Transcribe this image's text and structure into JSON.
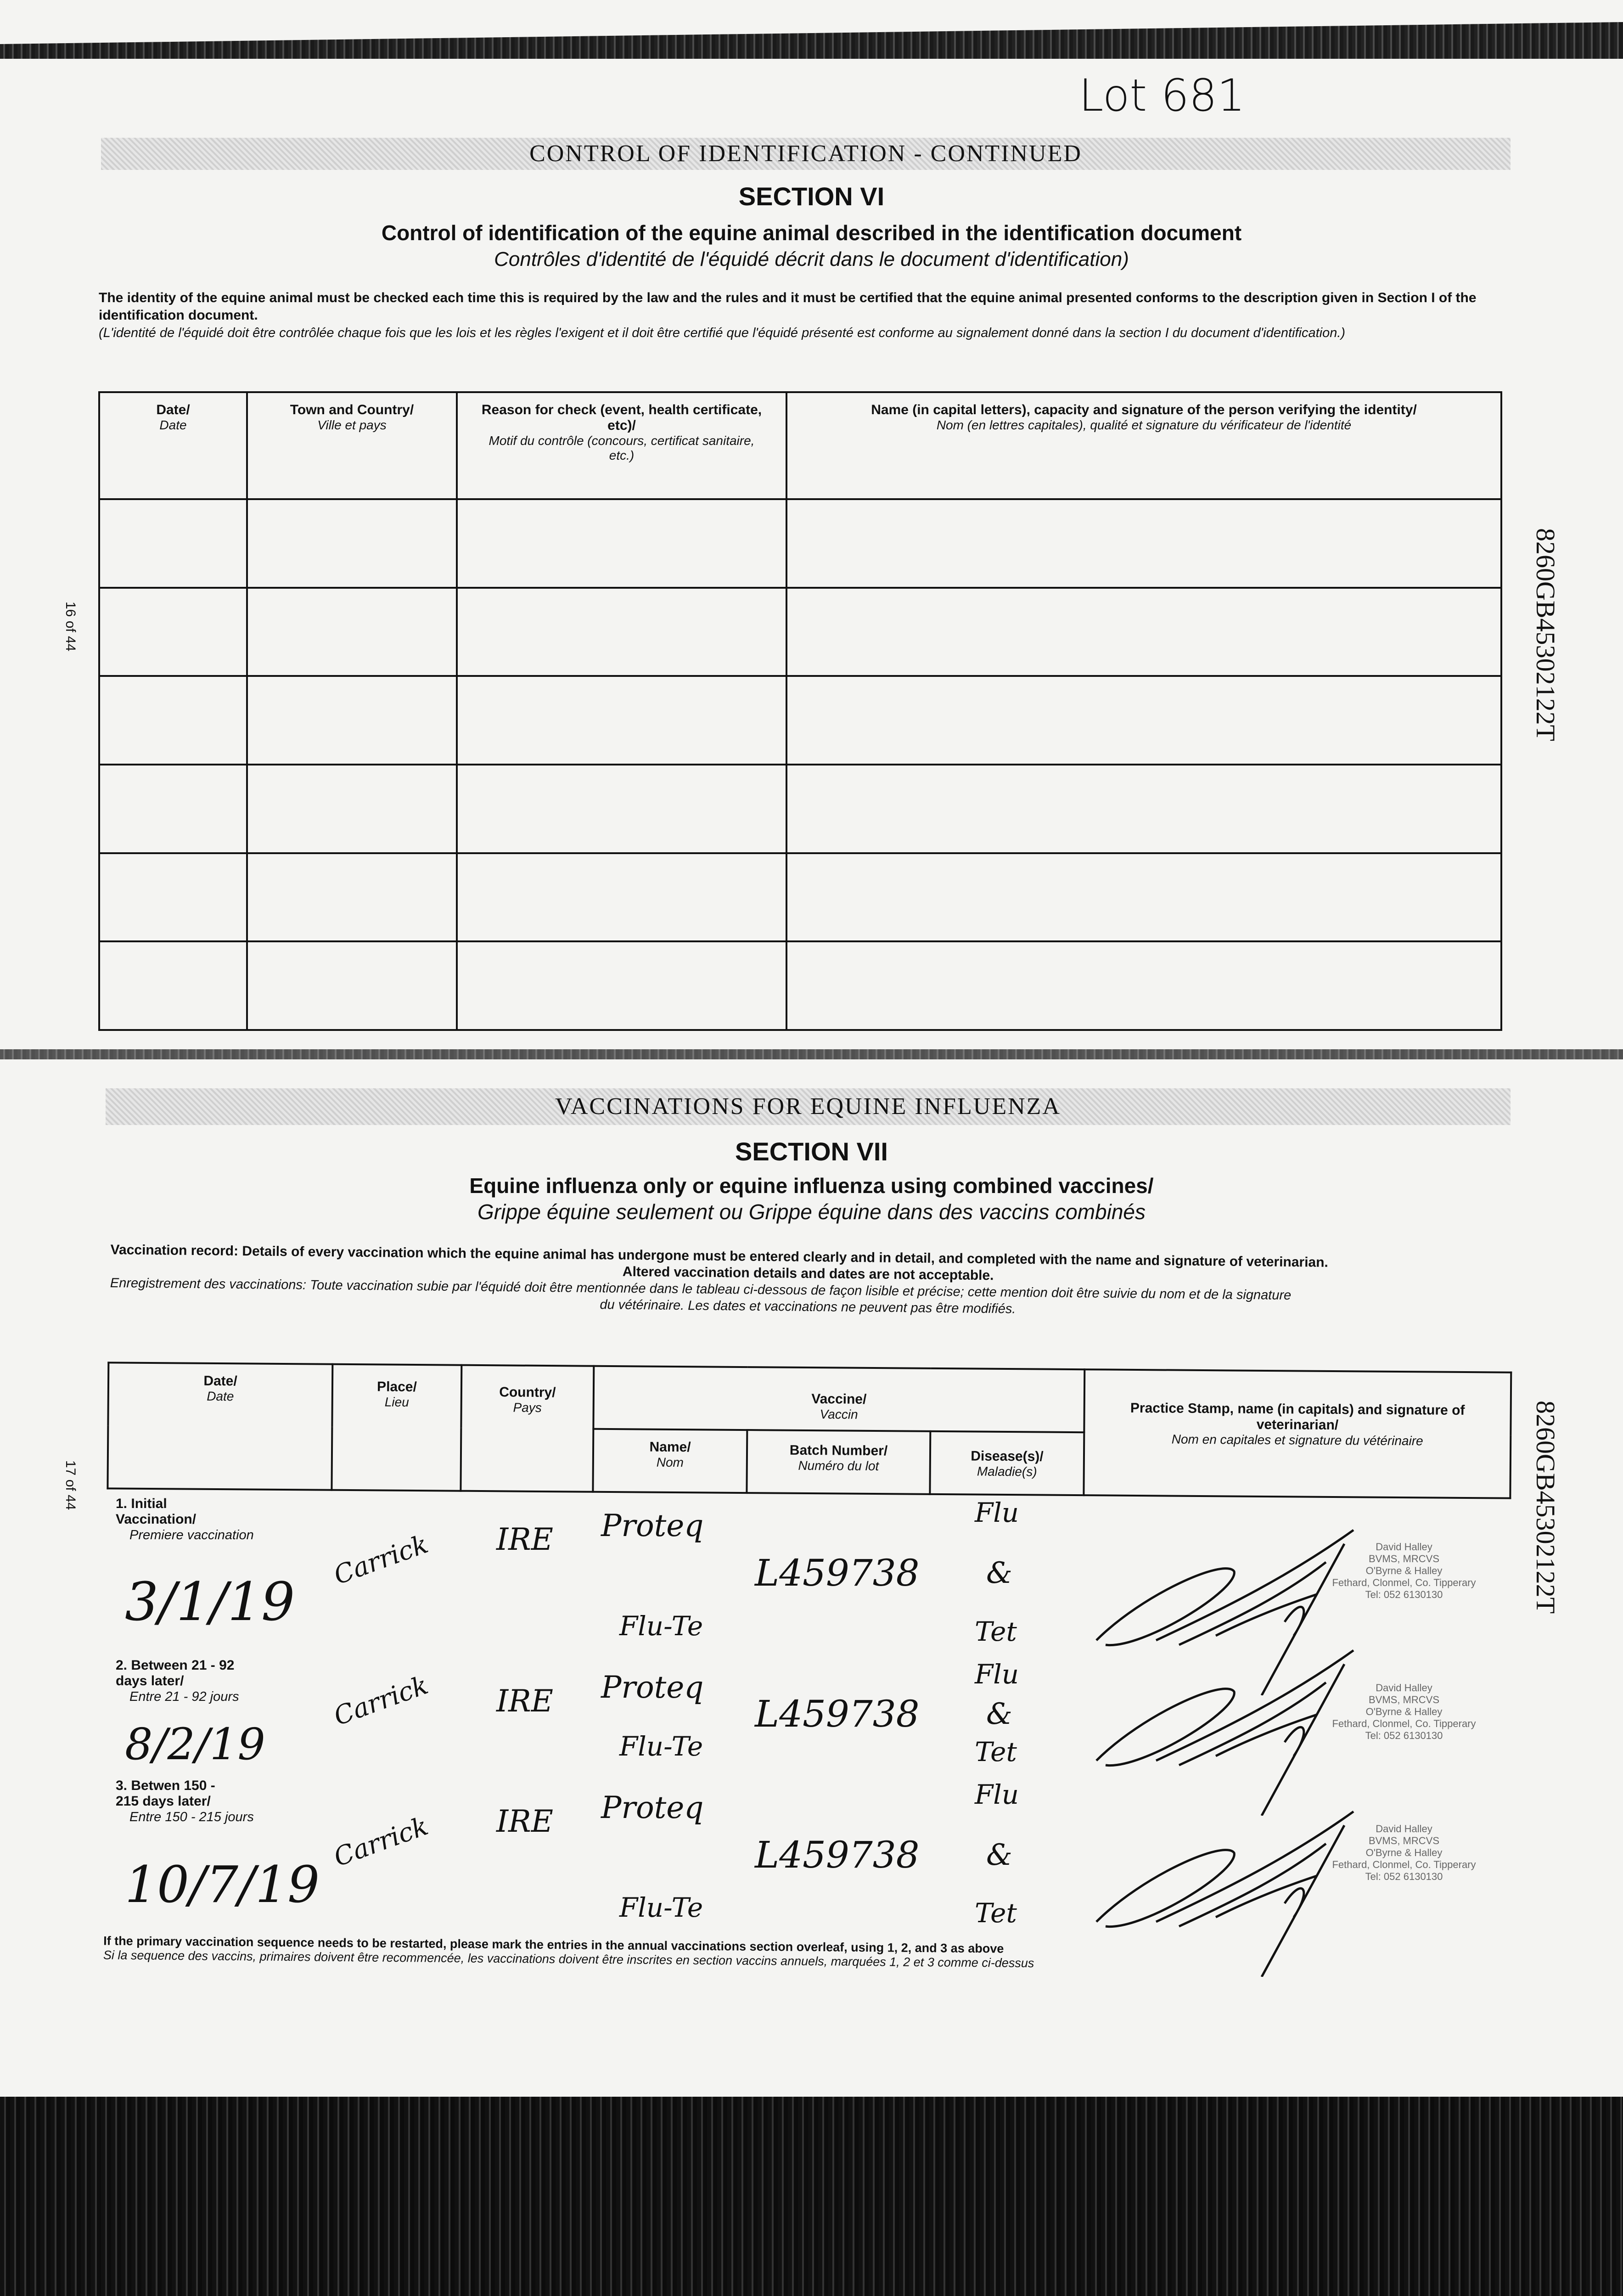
{
  "lot_note": "Lot 681",
  "section6": {
    "banner": "CONTROL OF IDENTIFICATION - CONTINUED",
    "section": "SECTION VI",
    "title": "Control of identification of the equine animal described in the identification document",
    "subtitle": "Contrôles d'identité de l'équidé décrit dans le document d'identification)",
    "para_en": "The identity of the equine animal must be checked each time this is required by the law and the rules and it must be certified that the equine animal presented conforms to the description given in Section I of the identification document.",
    "para_fr": "(L'identité de l'équidé doit être contrôlée chaque fois que les lois et les règles l'exigent et il doit être certifié que l'équidé présenté est conforme au signalement donné dans la section I du document d'identification.)",
    "columns": [
      {
        "en": "Date/",
        "fr": "Date"
      },
      {
        "en": "Town and Country/",
        "fr": "Ville et pays"
      },
      {
        "en": "Reason for check (event, health certificate, etc)/",
        "fr": "Motif du contrôle (concours, certificat sanitaire, etc.)"
      },
      {
        "en": "Name (in capital letters), capacity and signature of the person verifying the identity/",
        "fr": "Nom (en lettres capitales), qualité et signature du vérificateur de l'identité"
      }
    ],
    "page_number": "16 of 44"
  },
  "side_code": "8260GB45302122T",
  "section7": {
    "banner": "VACCINATIONS FOR EQUINE INFLUENZA",
    "section": "SECTION VII",
    "title": "Equine influenza only or equine influenza using combined vaccines/",
    "subtitle": "Grippe équine seulement ou Grippe équine dans des vaccins combinés",
    "para_en_1": "Vaccination record: Details of every vaccination which the equine animal has undergone must be entered clearly and in detail, and completed with the name and signature of veterinarian.",
    "para_en_2": "Altered vaccination details and dates are not acceptable.",
    "para_fr_1": "Enregistrement des vaccinations: Toute vaccination subie par l'équidé doit être mentionnée dans le tableau ci-dessous de façon lisible et précise; cette mention doit être suivie du nom et de la signature",
    "para_fr_2": "du vétérinaire. Les dates et vaccinations ne peuvent pas être modifiés.",
    "headers": {
      "date": {
        "en": "Date/",
        "fr": "Date"
      },
      "place": {
        "en": "Place/",
        "fr": "Lieu"
      },
      "country": {
        "en": "Country/",
        "fr": "Pays"
      },
      "vaccine": {
        "en": "Vaccine/",
        "fr": "Vaccin"
      },
      "name": {
        "en": "Name/",
        "fr": "Nom"
      },
      "batch": {
        "en": "Batch Number/",
        "fr": "Numéro du lot"
      },
      "disease": {
        "en": "Disease(s)/",
        "fr": "Maladie(s)"
      },
      "stamp": {
        "en": "Practice Stamp, name (in capitals) and signature of veterinarian/",
        "fr": "Nom en capitales et signature du vétérinaire"
      }
    },
    "rows": [
      {
        "label_en": "1. Initial Vaccination/",
        "label_fr": "Premiere vaccination",
        "date": "3/1/19",
        "place": "Carrick",
        "country": "IRE",
        "vaccine_1": "Proteq",
        "vaccine_2": "Flu-Te",
        "batch": "L459738",
        "disease_1": "Flu",
        "disease_2": "&",
        "disease_3": "Tet"
      },
      {
        "label_en": "2. Between 21 - 92 days later/",
        "label_fr": "Entre 21 - 92 jours",
        "date": "8/2/19",
        "place": "Carrick",
        "country": "IRE",
        "vaccine_1": "Proteq",
        "vaccine_2": "Flu-Te",
        "batch": "L459738",
        "disease_1": "Flu",
        "disease_2": "&",
        "disease_3": "Tet"
      },
      {
        "label_en": "3. Betwen 150 - 215 days later/",
        "label_fr": "Entre 150 - 215 jours",
        "date": "10/7/19",
        "place": "Carrick",
        "country": "IRE",
        "vaccine_1": "Proteq",
        "vaccine_2": "Flu-Te",
        "batch": "L459738",
        "disease_1": "Flu",
        "disease_2": "&",
        "disease_3": "Tet"
      }
    ],
    "stamp_lines": [
      "David Halley",
      "BVMS, MRCVS",
      "O'Byrne & Halley",
      "Fethard, Clonmel, Co. Tipperary",
      "Tel: 052 6130130"
    ],
    "footnote_en": "If the primary vaccination sequence needs to be restarted, please mark the entries in the annual vaccinations section overleaf, using 1, 2, and 3 as above",
    "footnote_fr": "Si la sequence des vaccins, primaires doivent être recommencée, les vaccinations doivent être inscrites en section vaccins annuels, marquées 1, 2 et 3 comme ci-dessus",
    "page_number": "17 of 44"
  }
}
